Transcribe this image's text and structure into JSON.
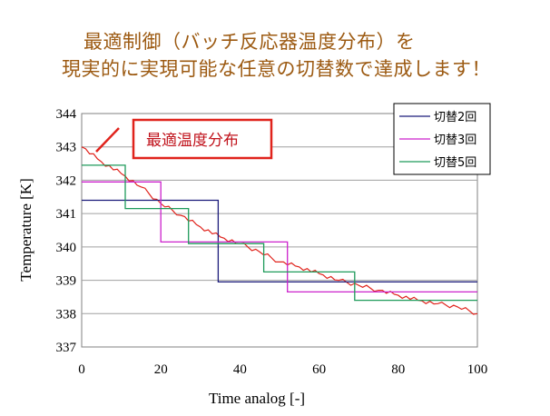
{
  "header": {
    "line1": "最適制御（バッチ反応器温度分布）を",
    "line2": "現実的に実現可能な任意の切替数で達成します！"
  },
  "chart_data": {
    "type": "line",
    "title": "",
    "xlabel": "Time analog   [-]",
    "ylabel": "Temperature  [K]",
    "xlim": [
      0,
      100
    ],
    "ylim": [
      337,
      344
    ],
    "xticks": [
      "0",
      "20",
      "40",
      "60",
      "80",
      "100"
    ],
    "yticks": [
      "337",
      "338",
      "339",
      "340",
      "341",
      "342",
      "343",
      "344"
    ],
    "grid": "horizontal",
    "legend_position": "top-right",
    "annotation": "最適温度分布",
    "series": [
      {
        "name": "最適温度分布",
        "color": "#e0231c",
        "x": [
          0,
          5,
          10,
          15,
          20,
          25,
          30,
          35,
          40,
          45,
          50,
          55,
          60,
          65,
          70,
          75,
          80,
          85,
          90,
          95,
          100
        ],
        "y": [
          343.0,
          342.55,
          342.2,
          341.8,
          341.3,
          340.95,
          340.6,
          340.3,
          340.1,
          339.85,
          339.55,
          339.4,
          339.2,
          339.0,
          338.85,
          338.7,
          338.55,
          338.4,
          338.3,
          338.2,
          338.0
        ]
      },
      {
        "name": "切替2回",
        "color": "#1a1a7a",
        "x": [
          0,
          34.5,
          34.5,
          100
        ],
        "y": [
          341.4,
          341.4,
          338.95,
          338.95
        ]
      },
      {
        "name": "切替3回",
        "color": "#cc22cc",
        "x": [
          0,
          20,
          20,
          52,
          52,
          100
        ],
        "y": [
          341.95,
          341.95,
          340.15,
          340.15,
          338.65,
          338.65
        ]
      },
      {
        "name": "切替5回",
        "color": "#1e9a5a",
        "x": [
          0,
          11,
          11,
          27,
          27,
          46,
          46,
          69,
          69,
          100
        ],
        "y": [
          342.45,
          342.45,
          341.15,
          341.15,
          340.1,
          340.1,
          339.25,
          339.25,
          338.4,
          338.4
        ]
      }
    ],
    "legend_order": [
      1,
      2,
      3
    ]
  }
}
